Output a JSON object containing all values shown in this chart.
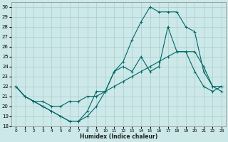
{
  "xlabel": "Humidex (Indice chaleur)",
  "bg_color": "#cce8e8",
  "grid_color": "#aacccc",
  "line_color": "#006666",
  "xlim": [
    -0.5,
    23.5
  ],
  "ylim": [
    18,
    30.5
  ],
  "xticks": [
    0,
    1,
    2,
    3,
    4,
    5,
    6,
    7,
    8,
    9,
    10,
    11,
    12,
    13,
    14,
    15,
    16,
    17,
    18,
    19,
    20,
    21,
    22,
    23
  ],
  "yticks": [
    18,
    19,
    20,
    21,
    22,
    23,
    24,
    25,
    26,
    27,
    28,
    29,
    30
  ],
  "line1_x": [
    0,
    1,
    2,
    3,
    4,
    5,
    6,
    7,
    8,
    9,
    10,
    11,
    12,
    13,
    14,
    15,
    16,
    17,
    18,
    19,
    20,
    21,
    22,
    23
  ],
  "line1_y": [
    22,
    21,
    20.5,
    20,
    19.5,
    19,
    18.5,
    18.5,
    19,
    20,
    21.5,
    23.5,
    24.5,
    26.7,
    28.5,
    30,
    29.5,
    29.5,
    29.5,
    28,
    27.5,
    23.5,
    22,
    22
  ],
  "line2_x": [
    0,
    1,
    2,
    3,
    4,
    5,
    6,
    7,
    8,
    9,
    10,
    11,
    12,
    13,
    14,
    15,
    16,
    17,
    18,
    19,
    20,
    21,
    22,
    23
  ],
  "line2_y": [
    22,
    21,
    20.5,
    20.5,
    20,
    20,
    20.5,
    20.5,
    21,
    21,
    21.5,
    22,
    22.5,
    23,
    23.5,
    24,
    24.5,
    25,
    25.5,
    25.5,
    25.5,
    24,
    22,
    21.5
  ],
  "line3_x": [
    0,
    1,
    2,
    3,
    4,
    5,
    6,
    7,
    8,
    9,
    10,
    11,
    12,
    13,
    14,
    15,
    16,
    17,
    18,
    19,
    20,
    21,
    22,
    23
  ],
  "line3_y": [
    22,
    21,
    20.5,
    20,
    19.5,
    19,
    18.5,
    18.5,
    19.5,
    21.5,
    21.5,
    23.5,
    24,
    23.5,
    25,
    23.5,
    24,
    28,
    25.5,
    25.5,
    23.5,
    22,
    21.5,
    22
  ]
}
